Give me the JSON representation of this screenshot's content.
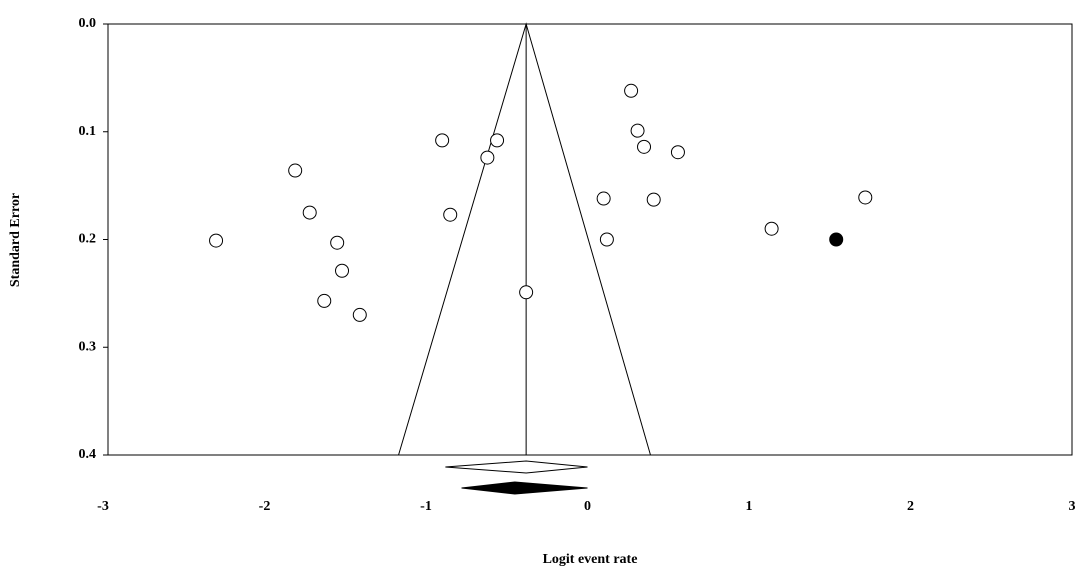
{
  "chart_data": {
    "type": "funnel",
    "x_label": "Logit event rate",
    "y_label": "Standard Error",
    "xlim": [
      -3,
      3
    ],
    "xticks": [
      -3,
      -2,
      -1,
      0,
      1,
      2,
      3
    ],
    "ylim": [
      0,
      0.4
    ],
    "yticks": [
      {
        "value": 0,
        "label": "0.0"
      },
      0.1,
      0.2,
      0.3,
      0.4
    ],
    "y_inverted": true,
    "pooled_estimate": -0.38,
    "funnel_base": [
      -1.17,
      0.39
    ],
    "studies": {
      "color": "#ffffff",
      "x": [
        -2.3,
        -1.81,
        -1.72,
        -1.55,
        -1.52,
        -1.63,
        -1.41,
        -0.9,
        -0.85,
        -0.62,
        -0.56,
        -0.38,
        0.1,
        0.12,
        0.27,
        0.31,
        0.35,
        0.56,
        0.41,
        1.14,
        1.72
      ],
      "y": [
        0.201,
        0.136,
        0.175,
        0.203,
        0.229,
        0.257,
        0.27,
        0.108,
        0.177,
        0.124,
        0.108,
        0.249,
        0.162,
        0.2,
        0.062,
        0.099,
        0.114,
        0.119,
        0.163,
        0.19,
        0.161
      ]
    },
    "imputed": {
      "color": "#000000",
      "x": [
        1.54
      ],
      "y": [
        0.2
      ]
    },
    "summary_observed": {
      "color": "#ffffff",
      "point": -0.38,
      "low": -0.88,
      "high": 0.0
    },
    "summary_imputed": {
      "color": "#000000",
      "point": -0.45,
      "low": -0.78,
      "high": 0.0
    }
  }
}
